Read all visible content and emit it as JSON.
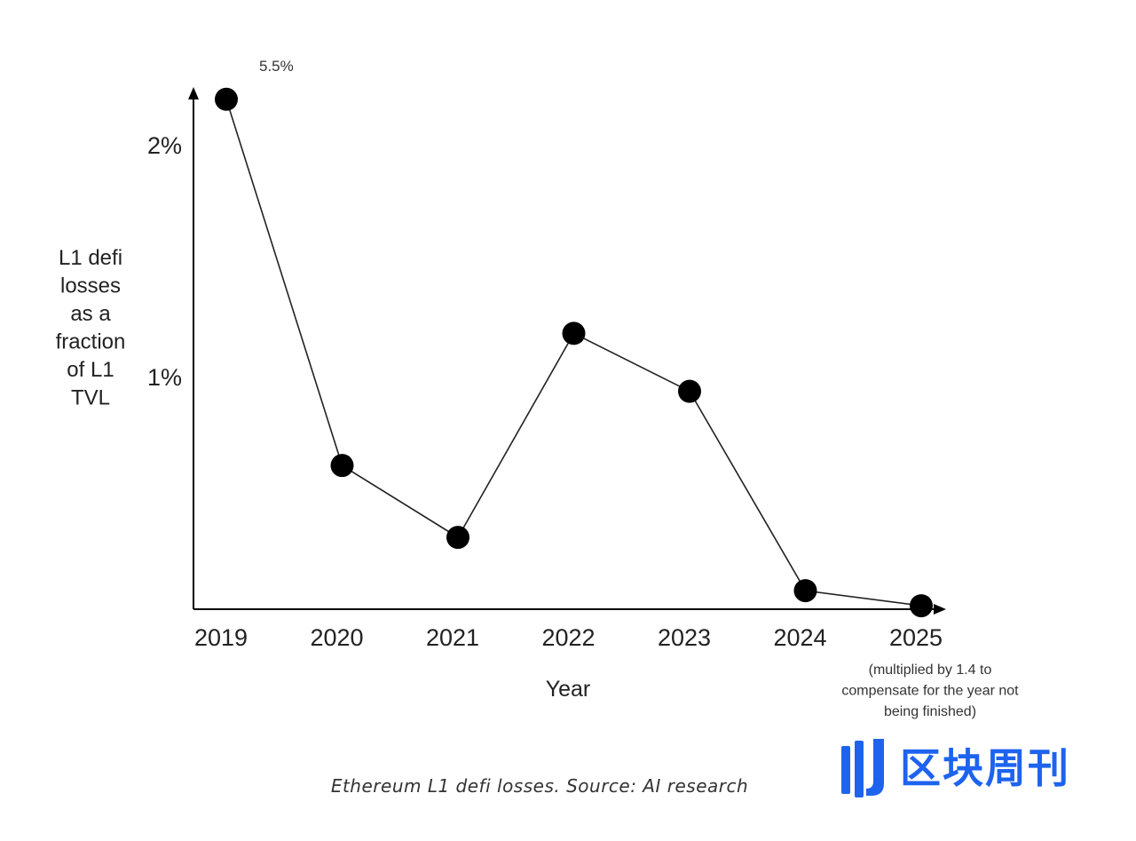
{
  "chart_data": {
    "type": "line",
    "categories": [
      "2019",
      "2020",
      "2021",
      "2022",
      "2023",
      "2024",
      "2025"
    ],
    "series": [
      {
        "name": "L1 defi losses as a fraction of L1 TVL",
        "values": [
          2.2,
          0.62,
          0.31,
          1.19,
          0.94,
          0.08,
          0.015
        ]
      }
    ],
    "ylim": [
      0,
      2.3
    ],
    "yticks": [
      {
        "value": 1,
        "label": "1%"
      },
      {
        "value": 2,
        "label": "2%"
      }
    ],
    "xlabel": "Year",
    "ylabel_lines": [
      "L1 defi",
      "losses",
      "as a",
      "fraction",
      "of L1",
      "TVL"
    ],
    "annotations": {
      "top_point_label": "5.5%",
      "note_2025": [
        "(multiplied by 1.4 to",
        "compensate for the year not",
        "being finished)"
      ]
    },
    "caption": "Ethereum L1 defi losses. Source: AI research",
    "grid": false
  },
  "watermark": {
    "text": "区块周刊",
    "color": "#1e63f0"
  },
  "colors": {
    "line": "#222222",
    "marker": "#000000",
    "axis": "#000000"
  }
}
